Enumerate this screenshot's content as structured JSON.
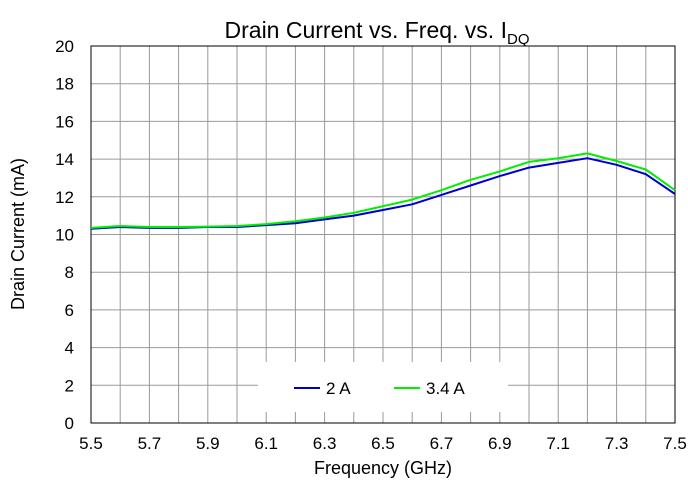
{
  "chart_data": {
    "type": "line",
    "title": "Drain Current vs. Freq. vs. I",
    "title_subscript": "DQ",
    "xlabel": "Frequency (GHz)",
    "ylabel": "Drain Current (mA)",
    "xlim": [
      5.5,
      7.5
    ],
    "ylim": [
      0,
      20
    ],
    "xticks": [
      "5.5",
      "5.7",
      "5.9",
      "6.1",
      "6.3",
      "6.5",
      "6.7",
      "6.9",
      "7.1",
      "7.3",
      "7.5"
    ],
    "yticks": [
      "0",
      "2",
      "4",
      "6",
      "8",
      "10",
      "12",
      "14",
      "16",
      "18",
      "20"
    ],
    "grid": true,
    "legend_position": "bottom-center",
    "x": [
      5.5,
      5.6,
      5.7,
      5.8,
      5.9,
      6.0,
      6.1,
      6.2,
      6.3,
      6.4,
      6.5,
      6.6,
      6.7,
      6.8,
      6.9,
      7.0,
      7.1,
      7.2,
      7.3,
      7.4,
      7.5
    ],
    "series": [
      {
        "name": "2 A",
        "color": "#0000cc",
        "values": [
          10.3,
          10.4,
          10.35,
          10.35,
          10.4,
          10.4,
          10.5,
          10.6,
          10.8,
          11.0,
          11.3,
          11.6,
          12.1,
          12.6,
          13.1,
          13.55,
          13.8,
          14.05,
          13.7,
          13.2,
          12.15
        ]
      },
      {
        "name": "3.4 A",
        "color": "#00ee00",
        "values": [
          10.35,
          10.45,
          10.4,
          10.4,
          10.42,
          10.45,
          10.55,
          10.7,
          10.9,
          11.15,
          11.5,
          11.85,
          12.35,
          12.9,
          13.35,
          13.85,
          14.05,
          14.3,
          13.9,
          13.45,
          12.35
        ]
      }
    ]
  }
}
